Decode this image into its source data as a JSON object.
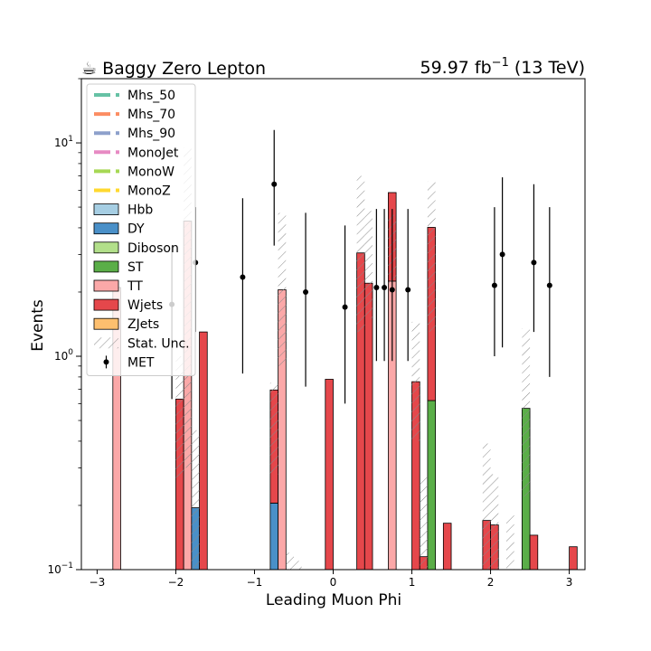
{
  "chart_data": {
    "type": "bar",
    "title_left": "☕ Baggy Zero Lepton",
    "title_right_value": "59.97 fb",
    "title_right_exp": "−1",
    "title_right_energy": " (13 TeV)",
    "xlabel": "Leading Muon Phi",
    "ylabel": "Events",
    "yscale": "log",
    "xlim": [
      -3.2,
      3.2
    ],
    "ylim": [
      0.1,
      20
    ],
    "xticks": [
      -3,
      -2,
      -1,
      0,
      1,
      2,
      3
    ],
    "xtick_labels": [
      "−3",
      "−2",
      "−1",
      "0",
      "1",
      "2",
      "3"
    ],
    "yticks": [
      0.1,
      1,
      10
    ],
    "ytick_base": "10",
    "ytick_exps": [
      "−1",
      "0",
      "1"
    ],
    "bin_width": 0.1,
    "legend": {
      "placement": "top-left",
      "entries": [
        {
          "label": "Mhs_50",
          "style": "dashline",
          "color": "#66c2a5"
        },
        {
          "label": "Mhs_70",
          "style": "dashline",
          "color": "#fc8d62"
        },
        {
          "label": "Mhs_90",
          "style": "dashline",
          "color": "#8da0cb"
        },
        {
          "label": "MonoJet",
          "style": "dashline",
          "color": "#e78ac3"
        },
        {
          "label": "MonoW",
          "style": "dashline",
          "color": "#a6d854"
        },
        {
          "label": "MonoZ",
          "style": "dashline",
          "color": "#ffd92f"
        },
        {
          "label": "Hbb",
          "style": "box",
          "color": "#a6cee3"
        },
        {
          "label": "DY",
          "style": "box",
          "color": "#4a90c8"
        },
        {
          "label": "Diboson",
          "style": "box",
          "color": "#b2df8a"
        },
        {
          "label": "ST",
          "style": "box",
          "color": "#5aae48"
        },
        {
          "label": "TT",
          "style": "box",
          "color": "#fba8a8"
        },
        {
          "label": "Wjets",
          "style": "box",
          "color": "#e5474b"
        },
        {
          "label": "ZJets",
          "style": "box",
          "color": "#fdbf6f"
        },
        {
          "label": "Stat. Unc.",
          "style": "hatch",
          "color": "#888888"
        },
        {
          "label": "MET",
          "style": "marker",
          "color": "#000000"
        }
      ]
    },
    "stack_bins": [
      {
        "x": -2.75,
        "TT": 2.1
      },
      {
        "x": -1.95,
        "Wjets": 0.63
      },
      {
        "x": -1.85,
        "TT": 4.3
      },
      {
        "x": -1.75,
        "DY": 0.195
      },
      {
        "x": -1.65,
        "Wjets": 1.3
      },
      {
        "x": -0.75,
        "DY": 0.205,
        "Wjets": 0.49
      },
      {
        "x": -0.65,
        "TT": 2.05
      },
      {
        "x": -0.05,
        "Wjets": 0.78
      },
      {
        "x": 0.35,
        "Wjets": 3.05
      },
      {
        "x": 0.45,
        "Wjets": 2.2
      },
      {
        "x": 0.75,
        "TT": 2.25,
        "Wjets": 3.6
      },
      {
        "x": 1.05,
        "Wjets": 0.76
      },
      {
        "x": 1.15,
        "Wjets": 0.115
      },
      {
        "x": 1.25,
        "ST": 0.62,
        "Wjets": 3.4
      },
      {
        "x": 1.45,
        "Wjets": 0.165
      },
      {
        "x": 1.95,
        "Wjets": 0.17
      },
      {
        "x": 2.05,
        "Wjets": 0.162
      },
      {
        "x": 2.45,
        "ST": 0.57
      },
      {
        "x": 2.55,
        "Wjets": 0.145
      },
      {
        "x": 3.05,
        "Wjets": 0.128
      }
    ],
    "stat_unc": [
      {
        "x": -1.95,
        "lo": 0.27,
        "hi": 1.0
      },
      {
        "x": -1.85,
        "lo": 0.3,
        "hi": 9.5
      },
      {
        "x": -1.75,
        "lo": 0.1,
        "hi": 0.45
      },
      {
        "x": -0.75,
        "lo": 0.28,
        "hi": 0.75
      },
      {
        "x": -0.65,
        "lo": 0.9,
        "hi": 4.7
      },
      {
        "x": -0.55,
        "lo": 0.1,
        "hi": 0.12
      },
      {
        "x": -0.45,
        "lo": 0.1,
        "hi": 0.11
      },
      {
        "x": 0.35,
        "lo": 1.3,
        "hi": 7.0
      },
      {
        "x": 0.45,
        "lo": 1.5,
        "hi": 4.8
      },
      {
        "x": 0.75,
        "lo": 2.2,
        "hi": 4.6
      },
      {
        "x": 1.05,
        "lo": 0.4,
        "hi": 1.45
      },
      {
        "x": 1.15,
        "lo": 0.1,
        "hi": 0.27
      },
      {
        "x": 1.25,
        "lo": 1.3,
        "hi": 6.6
      },
      {
        "x": 1.95,
        "lo": 0.1,
        "hi": 0.39
      },
      {
        "x": 2.05,
        "lo": 0.1,
        "hi": 0.28
      },
      {
        "x": 2.25,
        "lo": 0.1,
        "hi": 0.18
      },
      {
        "x": 2.45,
        "lo": 0.22,
        "hi": 1.35
      }
    ],
    "met_points": [
      {
        "x": -2.05,
        "y": 1.75,
        "lo": 0.63,
        "hi": 3.3
      },
      {
        "x": -1.75,
        "y": 2.75,
        "lo": 1.3,
        "hi": 5.0
      },
      {
        "x": -1.15,
        "y": 2.35,
        "lo": 0.83,
        "hi": 5.5
      },
      {
        "x": -0.75,
        "y": 6.4,
        "lo": 3.3,
        "hi": 11.5
      },
      {
        "x": -0.35,
        "y": 2.0,
        "lo": 0.72,
        "hi": 4.7
      },
      {
        "x": 0.15,
        "y": 1.7,
        "lo": 0.6,
        "hi": 4.1
      },
      {
        "x": 0.55,
        "y": 2.1,
        "lo": 0.95,
        "hi": 4.9
      },
      {
        "x": 0.65,
        "y": 2.1,
        "lo": 0.95,
        "hi": 4.9
      },
      {
        "x": 0.75,
        "y": 2.05,
        "lo": 0.95,
        "hi": 4.9
      },
      {
        "x": 0.95,
        "y": 2.05,
        "lo": 0.95,
        "hi": 4.9
      },
      {
        "x": 2.05,
        "y": 2.15,
        "lo": 1.0,
        "hi": 5.0
      },
      {
        "x": 2.15,
        "y": 3.0,
        "lo": 1.1,
        "hi": 6.9
      },
      {
        "x": 2.55,
        "y": 2.75,
        "lo": 1.3,
        "hi": 6.4
      },
      {
        "x": 2.75,
        "y": 2.15,
        "lo": 0.8,
        "hi": 5.0
      }
    ]
  }
}
